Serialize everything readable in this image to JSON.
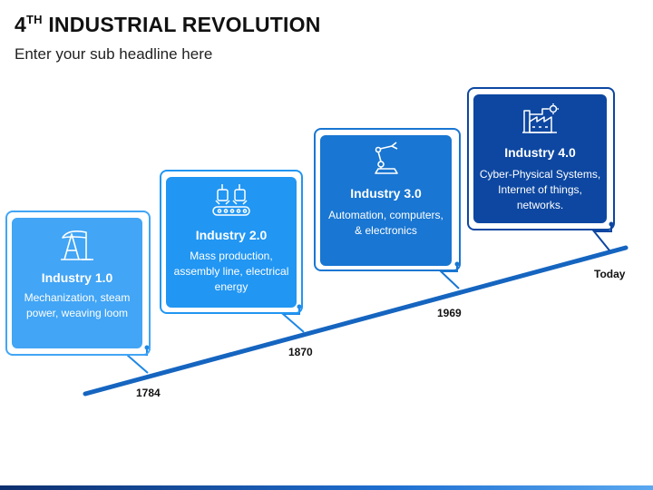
{
  "title": {
    "prefix": "4",
    "sup": "TH",
    "rest": " INDUSTRIAL REVOLUTION"
  },
  "subtitle": "Enter your sub headline here",
  "colors": {
    "stage1": "#42a5f5",
    "stage2": "#2196f3",
    "stage3": "#1976d2",
    "stage4": "#0d47a1",
    "timeline": "#1565c0"
  },
  "stages": [
    {
      "name": "Industry 1.0",
      "description": "Mechanization, steam power, weaving loom",
      "year": "1784",
      "icon": "oil-pump-icon"
    },
    {
      "name": "Industry 2.0",
      "description": "Mass production, assembly line, electrical energy",
      "year": "1870",
      "icon": "assembly-line-icon"
    },
    {
      "name": "Industry 3.0",
      "description": "Automation, computers, & electronics",
      "year": "1969",
      "icon": "robot-arm-icon"
    },
    {
      "name": "Industry 4.0",
      "description": "Cyber-Physical Systems, Internet of things, networks.",
      "year": "Today",
      "icon": "smart-factory-icon"
    }
  ]
}
